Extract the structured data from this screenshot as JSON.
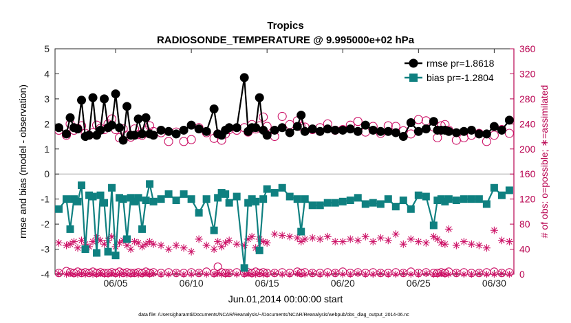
{
  "chart_data": {
    "type": "line",
    "title": "Tropics",
    "subtitle": "RADIOSONDE_TEMPERATURE @ 9.995000e+02 hPa",
    "xlabel": "Jun.01,2014 00:00:00 start",
    "ylabel_left": "rmse and bias (model - observation)",
    "ylabel_right": "# of obs: o=possible; ∗=assimilated",
    "footnote": "data file: /Users/gharamti/Documents/NCAR/Reanalysis/~/Documents/NCAR/Reanalysis/webpub/obs_diag_output_2014-06.nc",
    "xlim": [
      1.0,
      31.3
    ],
    "ylim_left": [
      -4,
      5
    ],
    "ylim_right": [
      0,
      360
    ],
    "yticks_left": [
      -4,
      -3,
      -2,
      -1,
      0,
      1,
      2,
      3,
      4,
      5
    ],
    "yticks_right": [
      0,
      40,
      80,
      120,
      160,
      200,
      240,
      280,
      320,
      360
    ],
    "xticks": [
      {
        "value": 5.0,
        "label": "06/05"
      },
      {
        "value": 10.0,
        "label": "06/10"
      },
      {
        "value": 15.0,
        "label": "06/15"
      },
      {
        "value": 20.0,
        "label": "06/20"
      },
      {
        "value": 25.0,
        "label": "06/25"
      },
      {
        "value": 30.0,
        "label": "06/30"
      }
    ],
    "colors": {
      "rmse": "#000000",
      "bias": "#0f8080",
      "counts": "#cc1166",
      "right_axis": "#b8004f",
      "zero_line": "#bbbbbb"
    },
    "x": [
      1.25,
      1.75,
      2.0,
      2.25,
      2.5,
      2.75,
      3.0,
      3.25,
      3.5,
      3.75,
      4.0,
      4.25,
      4.5,
      4.75,
      5.0,
      5.25,
      5.5,
      5.75,
      6.0,
      6.25,
      6.5,
      6.75,
      7.0,
      7.25,
      7.5,
      8.0,
      8.5,
      9.0,
      9.5,
      10.0,
      10.5,
      11.0,
      11.5,
      11.75,
      12.0,
      12.25,
      12.5,
      13.0,
      13.5,
      13.75,
      14.0,
      14.25,
      14.5,
      14.75,
      15.0,
      15.5,
      16.0,
      16.5,
      17.0,
      17.25,
      17.5,
      18.0,
      18.5,
      19.0,
      19.5,
      20.0,
      20.5,
      21.0,
      21.5,
      22.0,
      22.5,
      23.0,
      23.5,
      24.0,
      24.5,
      25.0,
      25.5,
      26.0,
      26.25,
      26.5,
      26.75,
      27.0,
      27.5,
      28.0,
      28.5,
      29.0,
      29.5,
      30.0,
      30.5,
      31.0
    ],
    "series": [
      {
        "name": "rmse pr=1.8618",
        "marker": "circle",
        "values": [
          1.85,
          1.6,
          2.25,
          1.85,
          1.8,
          2.95,
          1.5,
          1.55,
          3.05,
          1.55,
          1.75,
          3.0,
          1.85,
          1.95,
          3.2,
          1.85,
          1.35,
          2.7,
          1.55,
          1.55,
          2.2,
          1.6,
          2.25,
          1.6,
          1.55,
          1.75,
          1.7,
          1.6,
          1.75,
          1.95,
          1.8,
          1.7,
          2.6,
          1.6,
          1.55,
          1.75,
          1.85,
          1.85,
          3.85,
          1.7,
          1.85,
          1.85,
          3.05,
          1.75,
          1.55,
          1.75,
          1.85,
          1.65,
          1.9,
          2.35,
          1.7,
          1.8,
          1.7,
          1.8,
          1.75,
          1.75,
          1.8,
          1.7,
          1.95,
          1.75,
          1.7,
          1.7,
          1.65,
          1.5,
          2.05,
          1.7,
          1.8,
          2.1,
          1.75,
          1.75,
          1.75,
          1.7,
          1.65,
          1.7,
          1.75,
          1.6,
          1.6,
          1.9,
          1.75,
          2.15
        ]
      },
      {
        "name": "bias pr=-1.2804",
        "marker": "square",
        "values": [
          -1.4,
          -1.0,
          -2.2,
          -1.0,
          -1.1,
          -0.45,
          -3.0,
          -0.85,
          -0.9,
          -3.15,
          -0.85,
          -1.15,
          -3.1,
          -0.55,
          -3.25,
          -0.95,
          -1.0,
          -2.6,
          -0.95,
          -1.1,
          -0.95,
          -2.2,
          -1.05,
          -0.4,
          -1.1,
          -1.0,
          -0.8,
          -1.05,
          -0.8,
          -1.0,
          -1.55,
          -1.0,
          -2.25,
          -0.95,
          -0.75,
          -0.8,
          -1.15,
          -0.9,
          -3.75,
          -1.15,
          -1.0,
          -1.1,
          -3.05,
          -1.0,
          -0.6,
          -0.75,
          -0.55,
          -0.9,
          -1.0,
          -2.3,
          -1.0,
          -1.25,
          -1.25,
          -1.15,
          -1.15,
          -1.1,
          -1.05,
          -0.95,
          -1.2,
          -1.15,
          -1.2,
          -1.0,
          -1.3,
          -1.05,
          -1.4,
          -0.85,
          -0.9,
          -2.05,
          -1.05,
          -1.0,
          -1.1,
          -1.0,
          -1.05,
          -1.0,
          -1.0,
          -1.0,
          -1.2,
          -0.55,
          -0.85,
          -0.65
        ]
      },
      {
        "name": "possible",
        "axis": "right",
        "marker": "open-circle",
        "values": [
          230,
          222,
          240,
          230,
          233,
          237,
          225,
          222,
          226,
          238,
          233,
          231,
          240,
          248,
          231,
          218,
          232,
          222,
          219,
          232,
          223,
          222,
          230,
          237,
          228,
          226,
          212,
          227,
          212,
          215,
          234,
          226,
          217,
          224,
          214,
          224,
          231,
          230,
          234,
          227,
          239,
          232,
          237,
          251,
          236,
          220,
          252,
          239,
          245,
          236,
          235,
          231,
          234,
          240,
          230,
          231,
          238,
          244,
          227,
          236,
          225,
          237,
          236,
          229,
          224,
          247,
          245,
          235,
          218,
          237,
          239,
          230,
          214,
          218,
          222,
          225,
          212,
          222,
          231,
          225
        ]
      },
      {
        "name": "assimilated",
        "axis": "right",
        "marker": "asterisk",
        "values": [
          50,
          46,
          48,
          52,
          42,
          54,
          48,
          44,
          52,
          58,
          54,
          48,
          54,
          60,
          44,
          50,
          54,
          46,
          40,
          52,
          50,
          44,
          48,
          52,
          48,
          46,
          40,
          46,
          42,
          36,
          56,
          46,
          40,
          52,
          44,
          50,
          54,
          48,
          46,
          56,
          60,
          42,
          56,
          52,
          50,
          64,
          62,
          60,
          58,
          52,
          56,
          58,
          56,
          60,
          52,
          52,
          56,
          54,
          60,
          52,
          58,
          54,
          64,
          48,
          56,
          52,
          50,
          60,
          56,
          50,
          48,
          72,
          46,
          52,
          48,
          46,
          42,
          70,
          54,
          52
        ]
      }
    ],
    "legend": {
      "position": "top-right",
      "entries": [
        "rmse pr=1.8618",
        "bias pr=-1.2804"
      ]
    },
    "possible_near_zero": {
      "x": [
        1.25,
        1.75,
        2.0,
        2.25,
        2.5,
        2.75,
        3.0,
        3.25,
        3.5,
        3.75,
        4.0,
        4.25,
        4.5,
        4.75,
        5.0,
        5.25,
        5.5,
        5.75,
        6.0,
        6.25,
        6.5,
        6.75,
        7.0,
        7.25,
        7.5,
        8.0,
        8.5,
        9.0,
        9.5,
        10.0,
        10.5,
        11.0,
        11.5,
        11.75,
        12.0,
        12.25,
        12.5,
        13.0,
        13.5,
        13.75,
        14.0,
        14.25,
        14.5,
        14.75,
        15.0,
        15.5,
        16.0,
        16.5,
        17.0,
        17.25,
        17.5,
        18.0,
        18.5,
        19.0,
        19.5,
        20.0,
        20.5,
        21.0,
        21.5,
        22.0,
        22.5,
        23.0,
        23.5,
        24.0,
        24.5,
        25.0,
        25.5,
        26.0,
        26.25,
        26.5,
        26.75,
        27.0,
        27.5,
        28.0,
        28.5,
        29.0,
        29.5,
        30.0,
        30.5,
        31.0
      ],
      "values": [
        2,
        5,
        3,
        2,
        4,
        2,
        3,
        2,
        4,
        2,
        3,
        2,
        2,
        3,
        2,
        4,
        2,
        3,
        2,
        2,
        3,
        2,
        4,
        2,
        3,
        2,
        3,
        2,
        2,
        3,
        2,
        4,
        2,
        12,
        3,
        2,
        2,
        3,
        2,
        3,
        2,
        4,
        2,
        3,
        2,
        2,
        3,
        2,
        4,
        2,
        3,
        2,
        2,
        3,
        2,
        4,
        2,
        3,
        2,
        3,
        2,
        2,
        3,
        2,
        4,
        2,
        3,
        2,
        2,
        3,
        2,
        4,
        2,
        3,
        2,
        2,
        3,
        4,
        2,
        3
      ]
    },
    "assimilated_near_zero": {
      "values": [
        1,
        0,
        1,
        0,
        0,
        1,
        0,
        1,
        0,
        0,
        1,
        0,
        0,
        1,
        0,
        0,
        1,
        0,
        0,
        1,
        0,
        0,
        1,
        0,
        1,
        0,
        0,
        1,
        0,
        0,
        1,
        0,
        0,
        1,
        0,
        0,
        1,
        0,
        0,
        1,
        0,
        0,
        1,
        0,
        0,
        1,
        0,
        0,
        1,
        0,
        0,
        1,
        0,
        0,
        1,
        0,
        0,
        1,
        0,
        0,
        1,
        0,
        0,
        1,
        0,
        0,
        1,
        0,
        0,
        1,
        0,
        0,
        1,
        0,
        0,
        1,
        0,
        0,
        1,
        0
      ]
    }
  }
}
